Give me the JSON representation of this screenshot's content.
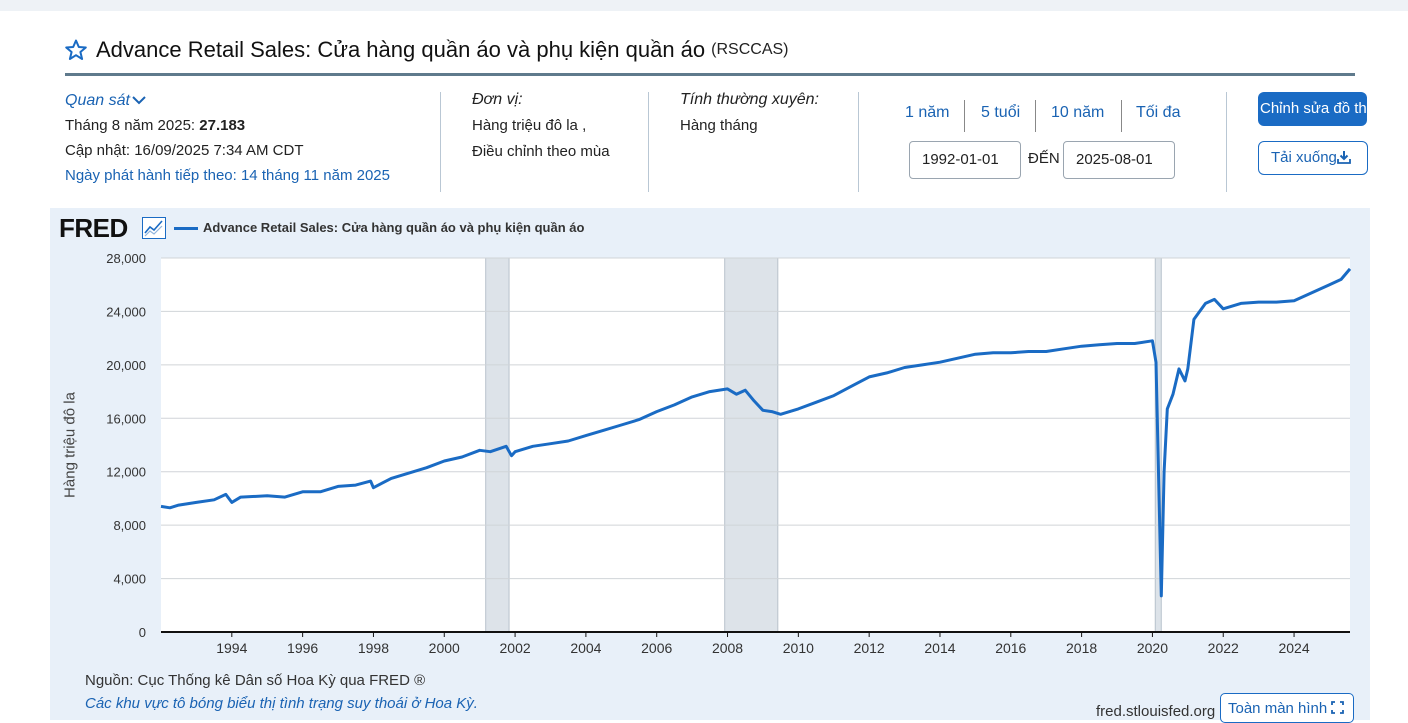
{
  "header": {
    "title": "Advance Retail Sales: Cửa hàng quần áo và phụ kiện quần áo",
    "series_code": "(RSCCAS)"
  },
  "observation": {
    "label": "Quan sát",
    "period_text": "Tháng 8 năm 2025:",
    "value": "27.183",
    "updated": "Cập nhật: 16/09/2025 7:34 AM CDT",
    "next_release": "Ngày phát hành tiếp theo: 14 tháng 11 năm 2025"
  },
  "units": {
    "label": "Đơn vị:",
    "line1": "Hàng triệu đô la ,",
    "line2": "Điều chỉnh theo mùa"
  },
  "frequency": {
    "label": "Tính thường xuyên:",
    "value": "Hàng tháng"
  },
  "range_buttons": [
    "1 năm",
    "5 tuổi",
    "10 năm",
    "Tối đa"
  ],
  "date_range": {
    "start": "1992-01-01",
    "end": "2025-08-01",
    "to_label": "ĐẾN"
  },
  "buttons": {
    "edit": "Chỉnh sửa đồ thị",
    "download": "Tải xuống",
    "fullscreen": "Toàn màn hình"
  },
  "logo": "FRED",
  "footer": {
    "source": "Nguồn: Cục Thống kê Dân số Hoa Kỳ qua FRED ®",
    "note": "Các khu vực tô bóng biểu thị tình trạng suy thoái ở Hoa Kỳ.",
    "url": "fred.stlouisfed.org"
  },
  "colors": {
    "accent": "#1a6bc4",
    "panel": "#e8f0f9",
    "recession": "#dde3e9"
  },
  "chart_data": {
    "type": "line",
    "title": "",
    "series": [
      {
        "name": "Advance Retail Sales: Cửa hàng quần áo và phụ kiện quần áo"
      }
    ],
    "ylabel": "Hàng triệu đô la",
    "xlabel": "",
    "ylim": [
      0,
      28000
    ],
    "xlim": [
      1992.0,
      2025.58
    ],
    "x_ticks": [
      "1994",
      "1996",
      "1998",
      "2000",
      "2002",
      "2004",
      "2006",
      "2008",
      "2010",
      "2012",
      "2014",
      "2016",
      "2018",
      "2020",
      "2022",
      "2024"
    ],
    "y_ticks": [
      "0",
      "4,000",
      "8,000",
      "12,000",
      "16,000",
      "20,000",
      "24,000",
      "28,000"
    ],
    "grid": "horizontal",
    "recessions": [
      [
        2001.17,
        2001.83
      ],
      [
        2007.92,
        2009.42
      ],
      [
        2020.08,
        2020.25
      ]
    ],
    "points": [
      [
        1992.0,
        9400
      ],
      [
        1992.25,
        9300
      ],
      [
        1992.5,
        9500
      ],
      [
        1993.0,
        9700
      ],
      [
        1993.5,
        9900
      ],
      [
        1993.83,
        10300
      ],
      [
        1994.0,
        9700
      ],
      [
        1994.25,
        10100
      ],
      [
        1995.0,
        10200
      ],
      [
        1995.5,
        10100
      ],
      [
        1996.0,
        10500
      ],
      [
        1996.5,
        10500
      ],
      [
        1997.0,
        10900
      ],
      [
        1997.5,
        11000
      ],
      [
        1997.92,
        11300
      ],
      [
        1998.0,
        10800
      ],
      [
        1998.5,
        11500
      ],
      [
        1999.0,
        11900
      ],
      [
        1999.5,
        12300
      ],
      [
        2000.0,
        12800
      ],
      [
        2000.5,
        13100
      ],
      [
        2001.0,
        13600
      ],
      [
        2001.3,
        13500
      ],
      [
        2001.75,
        13900
      ],
      [
        2001.9,
        13200
      ],
      [
        2002.0,
        13500
      ],
      [
        2002.5,
        13900
      ],
      [
        2003.0,
        14100
      ],
      [
        2003.5,
        14300
      ],
      [
        2004.0,
        14700
      ],
      [
        2004.5,
        15100
      ],
      [
        2005.0,
        15500
      ],
      [
        2005.5,
        15900
      ],
      [
        2006.0,
        16500
      ],
      [
        2006.5,
        17000
      ],
      [
        2007.0,
        17600
      ],
      [
        2007.5,
        18000
      ],
      [
        2008.0,
        18200
      ],
      [
        2008.25,
        17800
      ],
      [
        2008.5,
        18100
      ],
      [
        2008.75,
        17300
      ],
      [
        2009.0,
        16600
      ],
      [
        2009.25,
        16500
      ],
      [
        2009.5,
        16300
      ],
      [
        2010.0,
        16700
      ],
      [
        2010.5,
        17200
      ],
      [
        2011.0,
        17700
      ],
      [
        2011.5,
        18400
      ],
      [
        2012.0,
        19100
      ],
      [
        2012.5,
        19400
      ],
      [
        2013.0,
        19800
      ],
      [
        2013.5,
        20000
      ],
      [
        2014.0,
        20200
      ],
      [
        2014.5,
        20500
      ],
      [
        2015.0,
        20800
      ],
      [
        2015.5,
        20900
      ],
      [
        2016.0,
        20900
      ],
      [
        2016.5,
        21000
      ],
      [
        2017.0,
        21000
      ],
      [
        2017.5,
        21200
      ],
      [
        2018.0,
        21400
      ],
      [
        2018.5,
        21500
      ],
      [
        2019.0,
        21600
      ],
      [
        2019.5,
        21600
      ],
      [
        2020.0,
        21800
      ],
      [
        2020.1,
        20200
      ],
      [
        2020.25,
        2700
      ],
      [
        2020.33,
        12000
      ],
      [
        2020.42,
        16700
      ],
      [
        2020.58,
        17800
      ],
      [
        2020.75,
        19700
      ],
      [
        2020.92,
        18800
      ],
      [
        2021.0,
        19700
      ],
      [
        2021.17,
        23400
      ],
      [
        2021.5,
        24600
      ],
      [
        2021.75,
        24900
      ],
      [
        2022.0,
        24200
      ],
      [
        2022.5,
        24600
      ],
      [
        2023.0,
        24700
      ],
      [
        2023.5,
        24700
      ],
      [
        2024.0,
        24800
      ],
      [
        2024.5,
        25400
      ],
      [
        2025.0,
        26000
      ],
      [
        2025.33,
        26400
      ],
      [
        2025.58,
        27183
      ]
    ]
  }
}
